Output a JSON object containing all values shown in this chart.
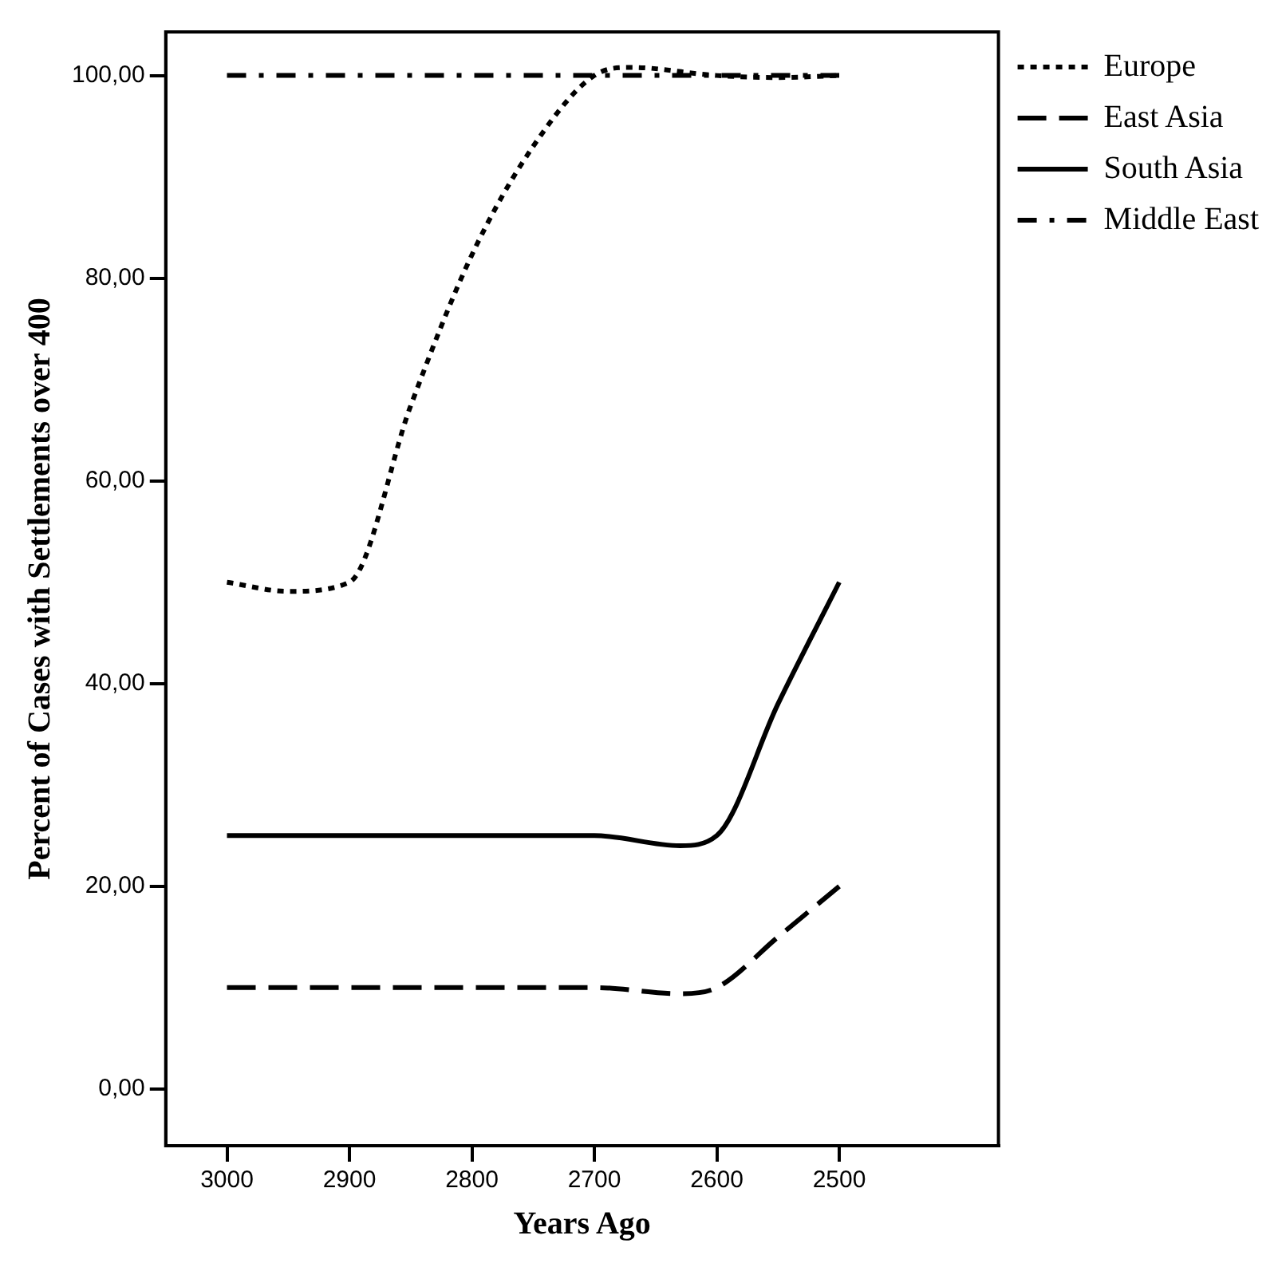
{
  "chart_data": {
    "type": "line",
    "xlabel": "Years Ago",
    "ylabel": "Percent of Cases with Settlements over 400",
    "xlim": [
      3050,
      2370
    ],
    "xticks": [
      3000,
      2900,
      2800,
      2700,
      2600,
      2500
    ],
    "ylim": [
      -5.6,
      104.3
    ],
    "yticks": [
      {
        "value": 0,
        "label": "0,00"
      },
      {
        "value": 20,
        "label": "20,00"
      },
      {
        "value": 40,
        "label": "40,00"
      },
      {
        "value": 60,
        "label": "60,00"
      },
      {
        "value": 80,
        "label": "80,00"
      },
      {
        "value": 100,
        "label": "100,00"
      }
    ],
    "grid": false,
    "legend": "top right",
    "marker": "none",
    "series": [
      {
        "name": "Europe",
        "color": "#000000",
        "line_style": "dotted",
        "x": [
          3000,
          2950,
          2900,
          2850,
          2800,
          2750,
          2700,
          2670,
          2600,
          2550,
          2500
        ],
        "values": [
          50,
          49.1,
          50,
          67.4,
          82.3,
          93,
          100,
          100.8,
          100,
          99.8,
          100
        ]
      },
      {
        "name": "East Asia",
        "color": "#000000",
        "line_style": "dashed",
        "x": [
          3000,
          2900,
          2800,
          2700,
          2630,
          2600,
          2550,
          2500
        ],
        "values": [
          10,
          10,
          10,
          10,
          9.4,
          10,
          15,
          20
        ]
      },
      {
        "name": "South Asia",
        "color": "#000000",
        "line_style": "solid",
        "x": [
          3000,
          2900,
          2800,
          2700,
          2630,
          2600,
          2550,
          2500
        ],
        "values": [
          25,
          25,
          25,
          25,
          24,
          25,
          38,
          50
        ]
      },
      {
        "name": "Middle East",
        "color": "#000000",
        "line_style": "dashdot",
        "x": [
          3000,
          2900,
          2800,
          2700,
          2600,
          2500
        ],
        "values": [
          100,
          100,
          100,
          100,
          100,
          100
        ]
      }
    ]
  }
}
